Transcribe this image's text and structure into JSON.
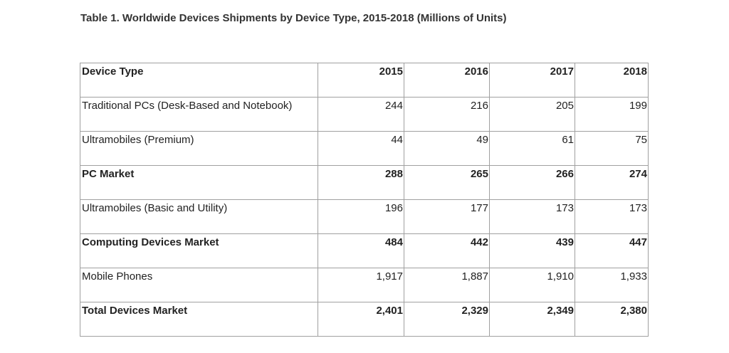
{
  "title": "Table 1. Worldwide Devices Shipments by Device Type, 2015-2018 (Millions of Units)",
  "table": {
    "header": [
      "Device Type",
      "2015",
      "2016",
      "2017",
      "2018"
    ],
    "rows": [
      [
        "Traditional PCs (Desk-Based and Notebook)",
        "244",
        "216",
        "205",
        "199"
      ],
      [
        "Ultramobiles (Premium)",
        "44",
        "49",
        "61",
        "75"
      ],
      [
        "PC Market",
        "288",
        "265",
        "266",
        "274"
      ],
      [
        "Ultramobiles (Basic and Utility)",
        "196",
        "177",
        "173",
        "173"
      ],
      [
        "Computing Devices Market",
        "484",
        "442",
        "439",
        "447"
      ],
      [
        "Mobile Phones",
        "1,917",
        "1,887",
        "1,910",
        "1,933"
      ],
      [
        "Total Devices Market",
        "2,401",
        "2,329",
        "2,349",
        "2,380"
      ]
    ]
  }
}
